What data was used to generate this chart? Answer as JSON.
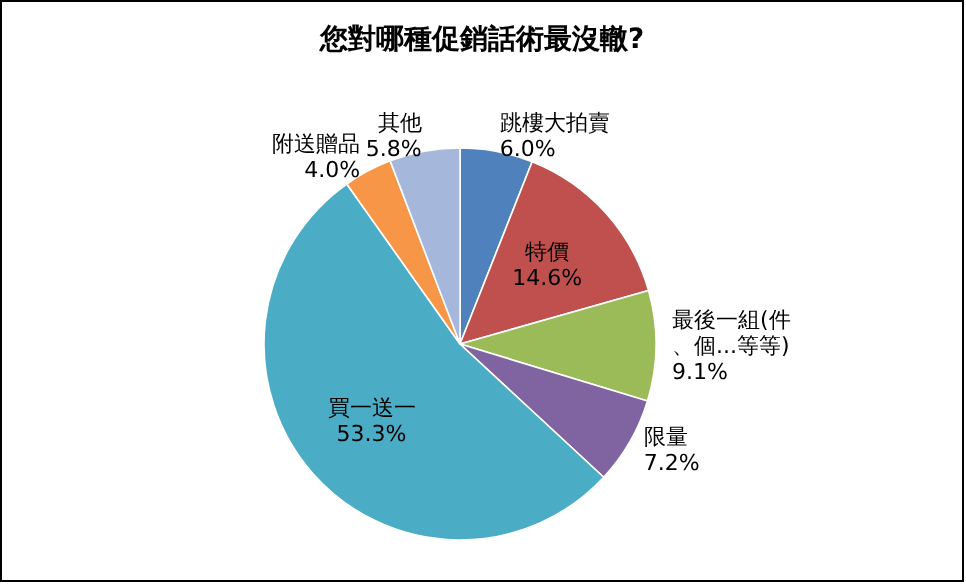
{
  "chart_data": {
    "type": "pie",
    "title": "您對哪種促銷話術最沒轍?",
    "categories": [
      "跳樓大拍賣",
      "特價",
      "最後一組(件、個...等等)",
      "限量",
      "買一送一",
      "附送贈品",
      "其他"
    ],
    "values": [
      6.0,
      14.6,
      9.1,
      7.2,
      53.3,
      4.0,
      5.8
    ],
    "value_labels": [
      "6.0%",
      "14.6%",
      "9.1%",
      "7.2%",
      "53.3%",
      "4.0%",
      "5.8%"
    ],
    "colors": [
      "#4f81bd",
      "#c0504d",
      "#9bbb59",
      "#8064a2",
      "#4bacc6",
      "#f79646",
      "#a5b8dc"
    ],
    "legend": false
  }
}
